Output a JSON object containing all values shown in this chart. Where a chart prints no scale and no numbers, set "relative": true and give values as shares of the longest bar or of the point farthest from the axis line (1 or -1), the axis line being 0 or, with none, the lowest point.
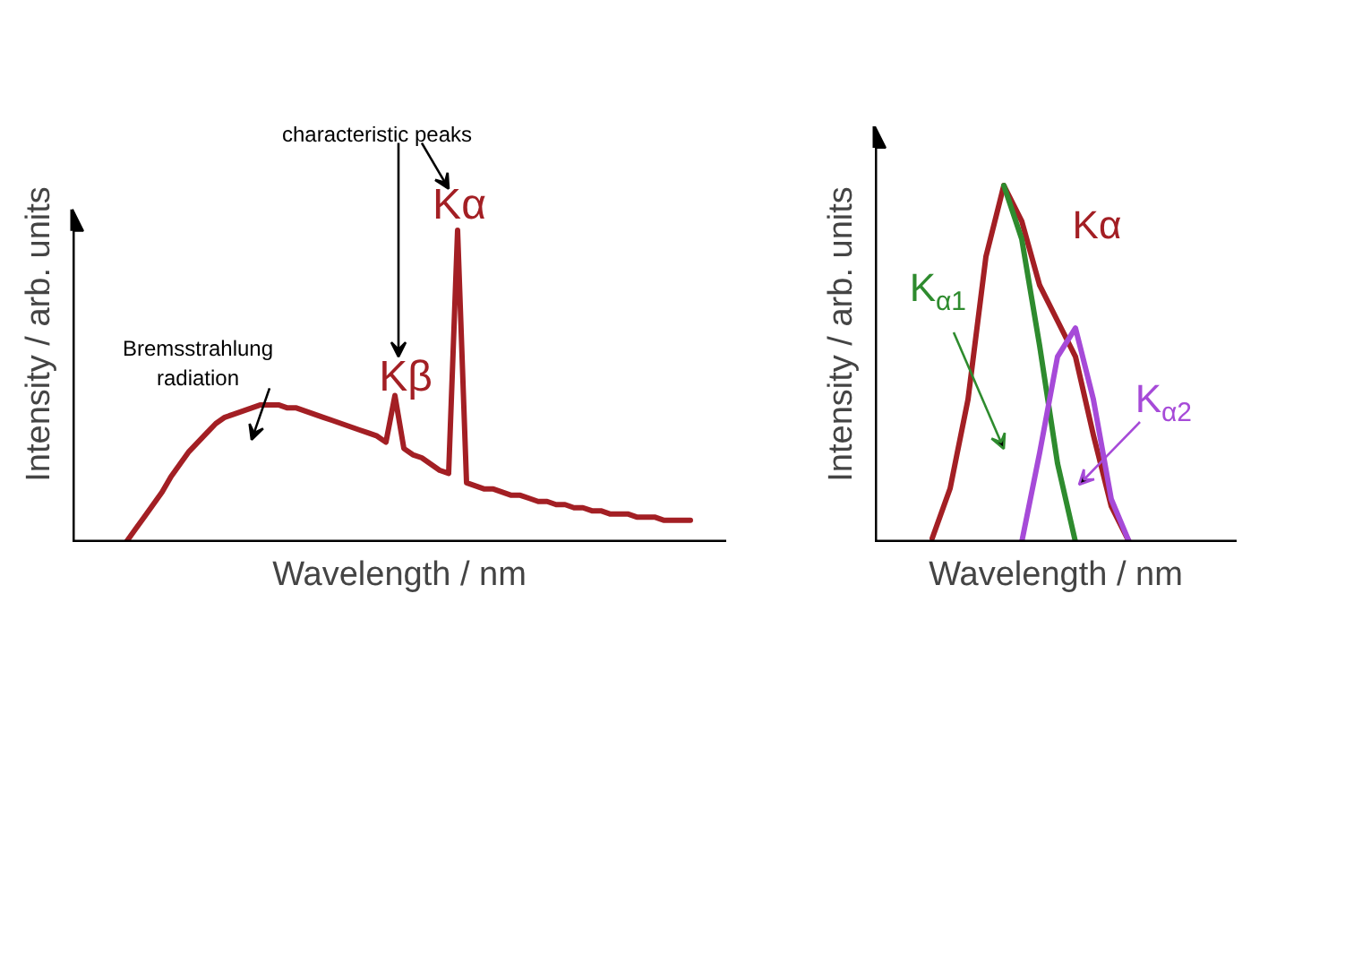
{
  "chart_data": [
    {
      "type": "line",
      "relative": true,
      "xlabel": "Wavelength / nm",
      "ylabel": "Intensity / arb. units",
      "legend": false,
      "grid": false,
      "tick_labels": false,
      "categories": [
        null,
        null,
        null,
        null,
        null,
        null,
        null,
        null,
        null,
        null,
        null,
        null,
        null,
        null,
        null,
        null,
        null,
        null,
        null,
        null,
        null,
        null,
        null,
        null,
        null,
        null,
        null,
        null,
        null,
        null,
        null,
        null,
        null,
        null,
        null,
        null,
        null,
        null,
        null,
        null,
        null,
        null,
        null,
        null,
        null,
        null,
        null,
        null,
        null,
        null,
        null,
        null,
        null,
        null,
        null,
        null,
        null,
        null,
        null,
        null,
        null,
        null,
        null,
        null
      ],
      "series": [
        {
          "color": "#a31f24",
          "values": [
            0,
            0.04,
            0.08,
            0.12,
            0.16,
            0.21,
            0.25,
            0.29,
            0.32,
            0.35,
            0.38,
            0.4,
            0.41,
            0.42,
            0.43,
            0.44,
            0.44,
            0.44,
            0.43,
            0.43,
            0.42,
            0.41,
            0.4,
            0.39,
            0.38,
            0.37,
            0.36,
            0.35,
            0.34,
            0.32,
            0.47,
            0.3,
            0.28,
            0.27,
            0.25,
            0.23,
            0.22,
            1.0,
            0.19,
            0.18,
            0.17,
            0.17,
            0.16,
            0.15,
            0.15,
            0.14,
            0.13,
            0.13,
            0.12,
            0.12,
            0.11,
            0.11,
            0.1,
            0.1,
            0.09,
            0.09,
            0.09,
            0.08,
            0.08,
            0.08,
            0.07,
            0.07,
            0.07,
            0.07
          ]
        }
      ],
      "annotations": [
        "characteristic peaks",
        "Kα",
        "Kβ",
        "Bremsstrahlung radiation"
      ]
    },
    {
      "type": "line",
      "relative": true,
      "xlabel": "Wavelength / nm",
      "ylabel": "Intensity / arb. units",
      "legend": false,
      "grid": false,
      "tick_labels": false,
      "categories": [
        null,
        null,
        null,
        null,
        null,
        null,
        null,
        null,
        null,
        null,
        null,
        null
      ],
      "series": [
        {
          "name": "Kα",
          "color": "#a31f24",
          "values": [
            0.01,
            0.15,
            0.4,
            0.8,
            1.0,
            0.9,
            0.72,
            0.62,
            0.52,
            0.3,
            0.1,
            0.0
          ]
        },
        {
          "name": "K$_{α1}$",
          "color": "#2e8b2e",
          "values": [
            null,
            null,
            null,
            null,
            1.0,
            0.85,
            0.55,
            0.22,
            0.0,
            null,
            null,
            null
          ]
        },
        {
          "name": "K$_{α2}$",
          "color": "#a64ad8",
          "values": [
            null,
            null,
            null,
            null,
            null,
            0.0,
            0.25,
            0.52,
            0.6,
            0.4,
            0.12,
            0.0
          ]
        }
      ]
    }
  ]
}
